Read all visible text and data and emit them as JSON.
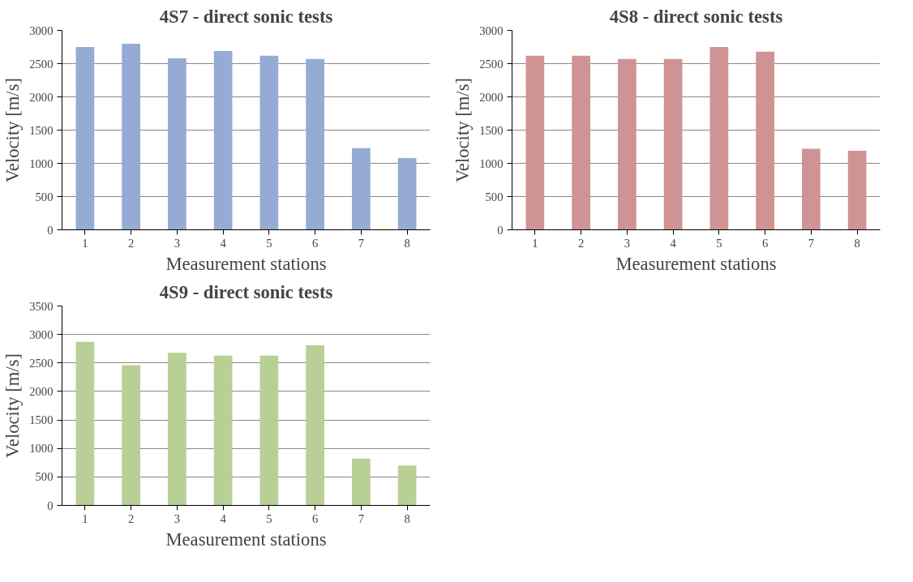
{
  "chart_data": [
    {
      "type": "bar",
      "title": "4S7 - direct sonic tests",
      "xlabel": "Measurement stations",
      "ylabel": "Velocity [m/s]",
      "categories": [
        "1",
        "2",
        "3",
        "4",
        "5",
        "6",
        "7",
        "8"
      ],
      "values": [
        2750,
        2800,
        2580,
        2690,
        2620,
        2570,
        1230,
        1080
      ],
      "color": "#95abd3",
      "ylim": [
        0,
        3000
      ],
      "yticks": [
        0,
        500,
        1000,
        1500,
        2000,
        2500,
        3000
      ],
      "grid": "y"
    },
    {
      "type": "bar",
      "title": "4S8 - direct sonic tests",
      "xlabel": "Measurement stations",
      "ylabel": "Velocity [m/s]",
      "categories": [
        "1",
        "2",
        "3",
        "4",
        "5",
        "6",
        "7",
        "8"
      ],
      "values": [
        2620,
        2620,
        2570,
        2570,
        2750,
        2680,
        1220,
        1190
      ],
      "color": "#d09393",
      "ylim": [
        0,
        3000
      ],
      "yticks": [
        0,
        500,
        1000,
        1500,
        2000,
        2500,
        3000
      ],
      "grid": "y"
    },
    {
      "type": "bar",
      "title": "4S9 - direct sonic tests",
      "xlabel": "Measurement stations",
      "ylabel": "Velocity [m/s]",
      "categories": [
        "1",
        "2",
        "3",
        "4",
        "5",
        "6",
        "7",
        "8"
      ],
      "values": [
        2870,
        2460,
        2680,
        2630,
        2630,
        2810,
        820,
        700
      ],
      "color": "#b8cf96",
      "ylim": [
        0,
        3500
      ],
      "yticks": [
        0,
        500,
        1000,
        1500,
        2000,
        2500,
        3000,
        3500
      ],
      "grid": "y"
    }
  ]
}
